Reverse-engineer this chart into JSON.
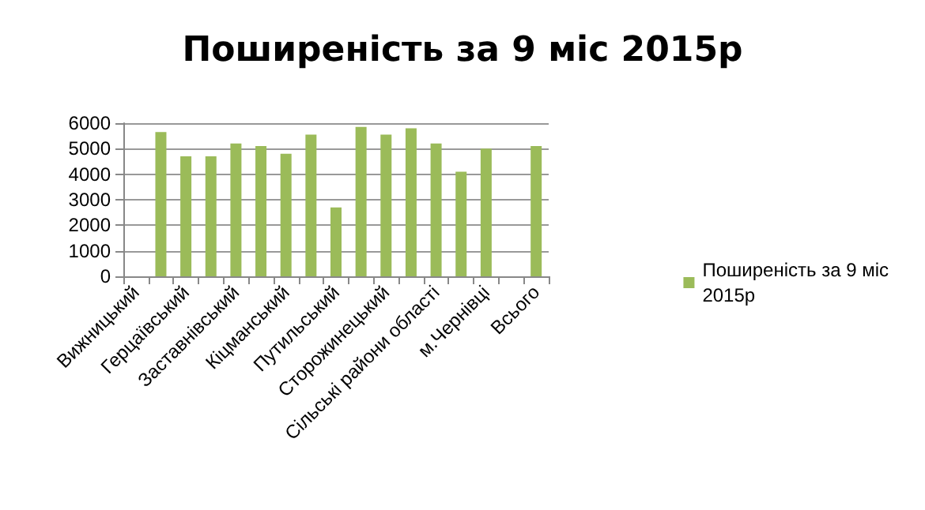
{
  "chart_data": {
    "type": "bar",
    "title": "Поширеність за 9 міс 2015р",
    "categories": [
      "Вижницький",
      null,
      "Герцаївський",
      null,
      "Заставнівський",
      null,
      "Кіцманський",
      null,
      "Путильський",
      null,
      "Сторожинецький",
      null,
      "Сільські райони області",
      null,
      "м.Чернівці",
      null,
      "Всього"
    ],
    "series": [
      {
        "name": "Поширеність за 9 міс 2015р",
        "color": "#9bbb59",
        "values": [
          null,
          5650,
          4700,
          4700,
          5200,
          5100,
          4800,
          5550,
          2700,
          5850,
          5550,
          5800,
          5200,
          4100,
          5000,
          null,
          5100
        ]
      }
    ],
    "ylim": [
      0,
      6000
    ],
    "yticks": [
      0,
      1000,
      2000,
      3000,
      4000,
      5000,
      6000
    ],
    "grid": "y",
    "legend": "right"
  }
}
